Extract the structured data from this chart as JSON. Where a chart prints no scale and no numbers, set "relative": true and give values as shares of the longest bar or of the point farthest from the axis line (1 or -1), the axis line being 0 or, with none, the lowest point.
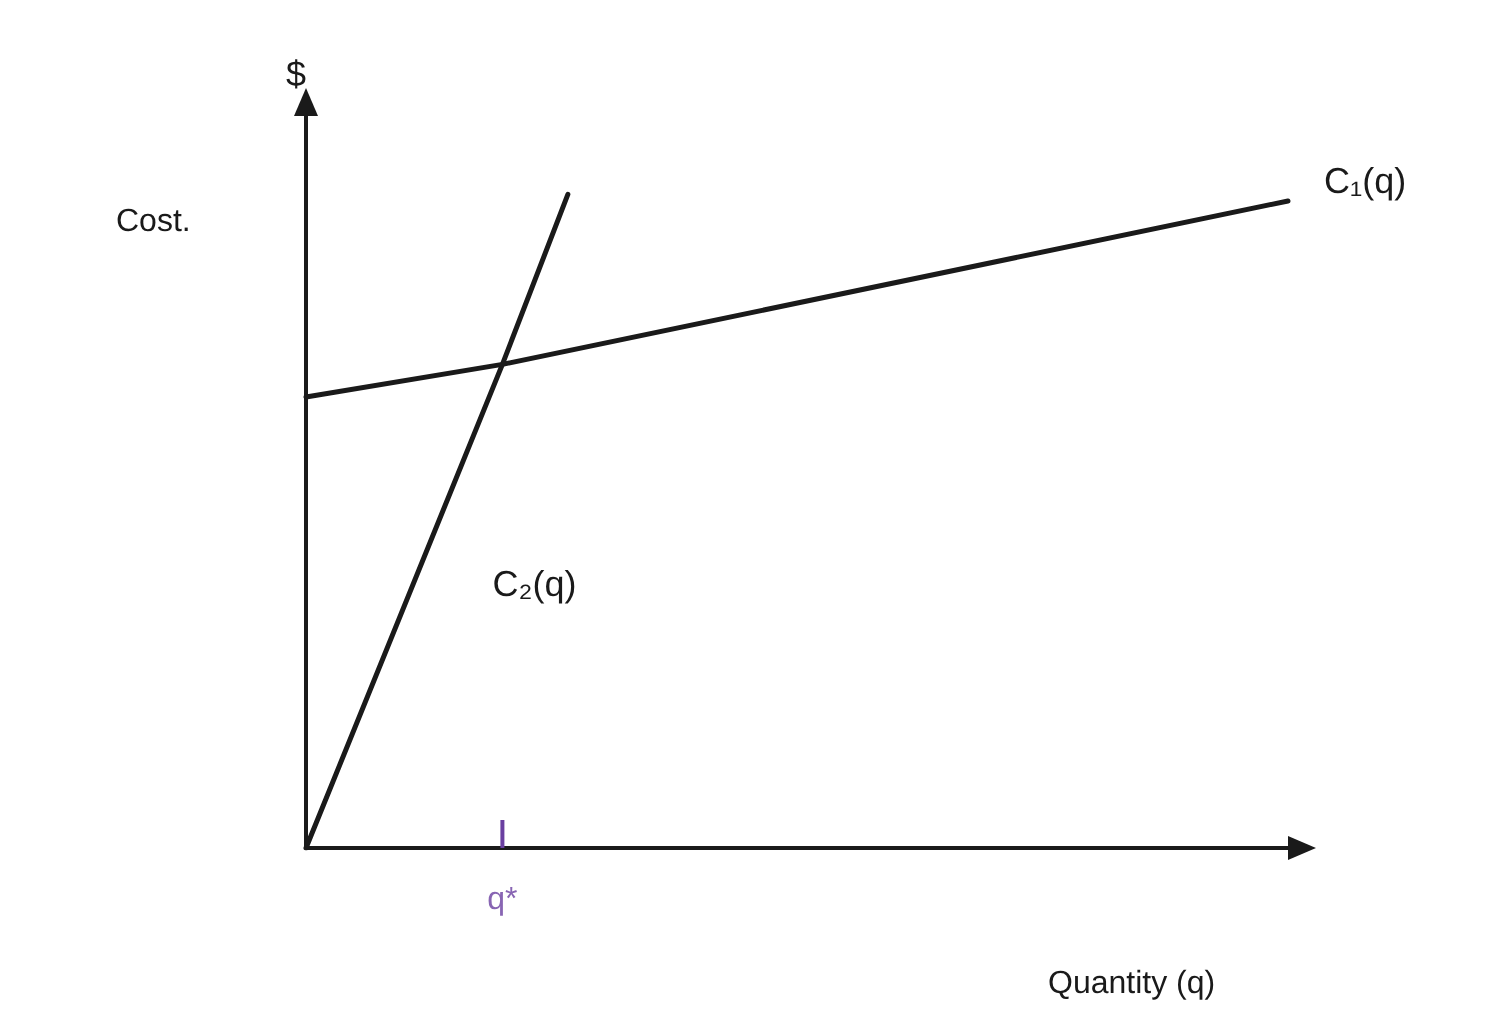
{
  "chart_data": {
    "type": "line",
    "relative": true,
    "ylabel": "$",
    "xlabel": "Quantity (q)",
    "annotations": [
      "Cost.",
      "q*"
    ],
    "categories": [
      null,
      null,
      null,
      null,
      null,
      null,
      null,
      null,
      null,
      null,
      null,
      null,
      null,
      null,
      null,
      null
    ],
    "grid": false,
    "legend": false,
    "marker": "none",
    "line_style": "solid",
    "series": [
      {
        "name": "C₁(q)",
        "color": "#1a1a1a",
        "values": [
          0.69,
          null,
          null,
          0.74,
          null,
          null,
          null,
          null,
          null,
          null,
          null,
          null,
          null,
          null,
          null,
          0.99
        ]
      },
      {
        "name": "C₂(q)",
        "color": "#1a1a1a",
        "values": [
          0,
          null,
          null,
          0.74,
          1,
          null,
          null,
          null,
          null,
          null,
          null,
          null,
          null,
          null,
          null,
          null
        ]
      }
    ]
  }
}
